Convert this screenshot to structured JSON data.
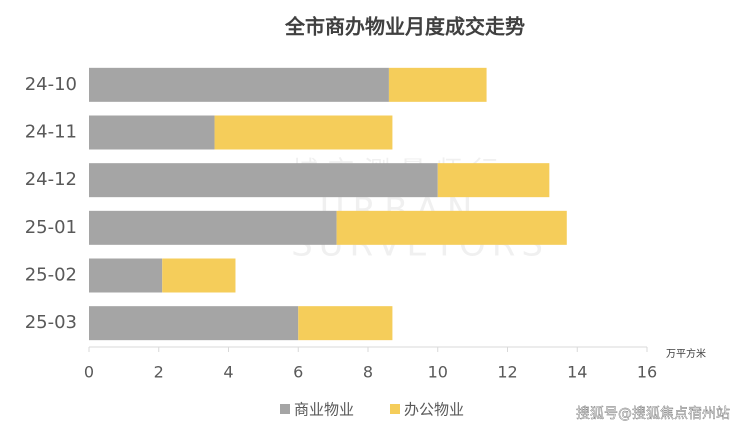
{
  "chart_data": {
    "type": "stacked_barh",
    "title": "全市商办物业月度成交走势",
    "categories": [
      "24-10",
      "24-11",
      "24-12",
      "25-01",
      "25-02",
      "25-03"
    ],
    "series": [
      {
        "name": "商业物业",
        "color": "#a5a5a5",
        "values": [
          8.6,
          3.6,
          10.0,
          7.1,
          2.1,
          6.0
        ]
      },
      {
        "name": "办公物业",
        "color": "#f5cd5a",
        "values": [
          2.8,
          5.1,
          3.2,
          6.6,
          2.1,
          2.7
        ]
      }
    ],
    "xlim": [
      0,
      16
    ],
    "xticks": [
      0,
      2,
      4,
      6,
      8,
      10,
      12,
      14,
      16
    ],
    "x_unit": "万平方米",
    "watermark": [
      "城市测量师行",
      "URBAN",
      "SURVEYORS"
    ],
    "source_note": "搜狐号@搜狐焦点宿州站"
  }
}
